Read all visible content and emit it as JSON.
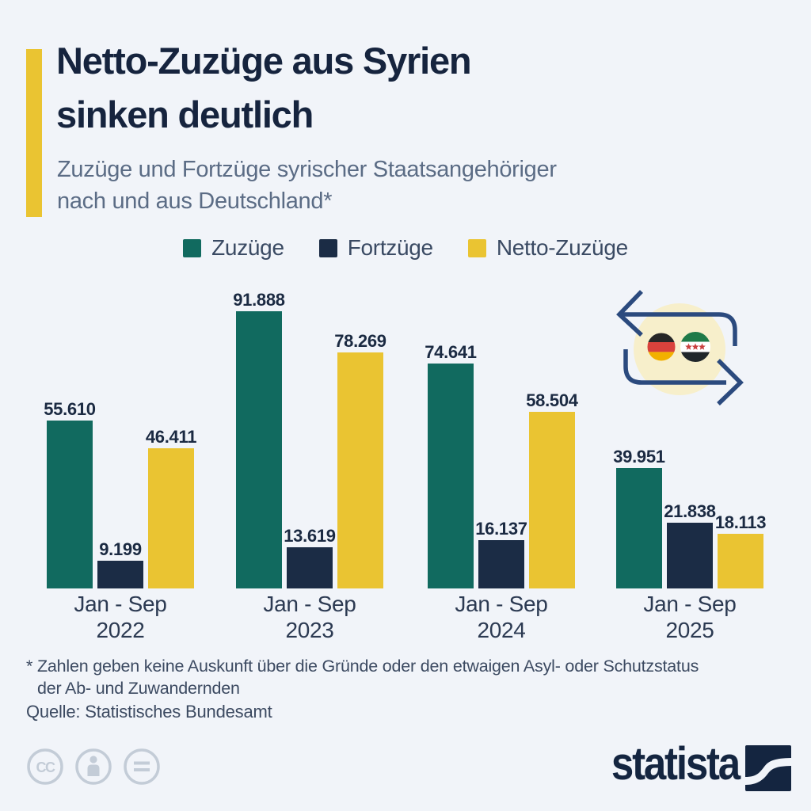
{
  "page": {
    "background": "#F1F4F9",
    "accent_color": "#EAC432"
  },
  "title": {
    "line1": "Netto-Zuzüge aus Syrien",
    "line2": "sinken deutlich"
  },
  "subtitle": {
    "line1": "Zuzüge und Fortzüge syrischer Staatsangehöriger",
    "line2": "nach und aus Deutschland*"
  },
  "legend": {
    "items": [
      {
        "label": "Zuzüge",
        "color": "#116A5F"
      },
      {
        "label": "Fortzüge",
        "color": "#1B2C45"
      },
      {
        "label": "Netto-Zuzüge",
        "color": "#EAC432"
      }
    ]
  },
  "chart_data": {
    "type": "bar",
    "categories": [
      {
        "period": "Jan - Sep",
        "year": "2022"
      },
      {
        "period": "Jan - Sep",
        "year": "2023"
      },
      {
        "period": "Jan - Sep",
        "year": "2024"
      },
      {
        "period": "Jan - Sep",
        "year": "2025"
      }
    ],
    "series": [
      {
        "name": "Zuzüge",
        "color": "#116A5F",
        "values": [
          55610,
          91888,
          74641,
          39951
        ],
        "labels": [
          "55.610",
          "91.888",
          "74.641",
          "39.951"
        ]
      },
      {
        "name": "Fortzüge",
        "color": "#1B2C45",
        "values": [
          9199,
          13619,
          16137,
          21838
        ],
        "labels": [
          "9.199",
          "13.619",
          "16.137",
          "21.838"
        ]
      },
      {
        "name": "Netto-Zuzüge",
        "color": "#EAC432",
        "values": [
          46411,
          78269,
          58504,
          18113
        ],
        "labels": [
          "46.411",
          "78.269",
          "58.504",
          "18.113"
        ]
      }
    ],
    "ylim": [
      0,
      95000
    ],
    "grid": false,
    "axis_lines": false,
    "legend_position": "top",
    "value_labels": "above-bars",
    "number_format": "thousands-dot"
  },
  "annotation_icon": {
    "left_flag": "germany-flag",
    "right_flag": "syria-flag",
    "motif": "exchange-arrows",
    "arrow_color": "#2B4A7E",
    "halo_color": "#F7EFCB"
  },
  "footnote": {
    "line1": "* Zahlen geben keine Auskunft über die Gründe oder den etwaigen Asyl- oder Schutzstatus",
    "line2": "der Ab- und Zuwandernden"
  },
  "source": {
    "text": "Quelle: Statistisches Bundesamt"
  },
  "branding": {
    "wordmark": "statista",
    "license_icons": [
      "cc-icon",
      "attribution-person-icon",
      "equals-icon"
    ]
  }
}
